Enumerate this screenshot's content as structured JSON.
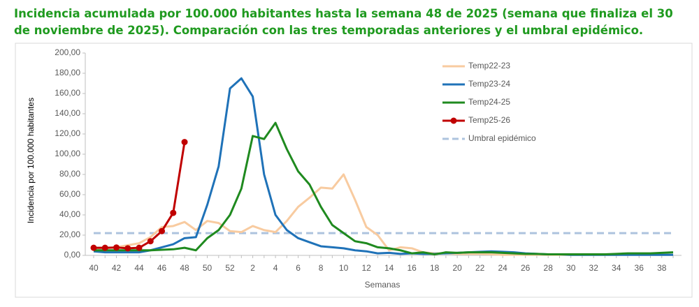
{
  "chart_data": {
    "type": "line",
    "title": "Incidencia acumulada por 100.000 habitantes hasta la semana 48 de 2025 (semana que finaliza el 30 de noviembre de 2025). Comparación con las tres temporadas anteriores y el umbral epidémico.",
    "x_label": "Semanas",
    "y_label": "Incidencia por 100.000 habitantes",
    "categories": [
      "40",
      null,
      "42",
      null,
      "44",
      null,
      "46",
      null,
      "48",
      null,
      "50",
      null,
      "52",
      null,
      "2",
      null,
      "4",
      null,
      "6",
      null,
      "8",
      null,
      "10",
      null,
      "12",
      null,
      "14",
      null,
      "16",
      null,
      "18",
      null,
      "20",
      null,
      "22",
      null,
      "24",
      null,
      "26",
      null,
      "28",
      null,
      "30",
      null,
      "32",
      null,
      "34",
      null,
      "36",
      null,
      "38",
      null
    ],
    "ylim": [
      0,
      200
    ],
    "yticks": [
      {
        "value": 0,
        "label": "0,00"
      },
      {
        "value": 20,
        "label": "20,00"
      },
      {
        "value": 40,
        "label": "40,00"
      },
      {
        "value": 60,
        "label": "60,00"
      },
      {
        "value": 80,
        "label": "80,00"
      },
      {
        "value": 100,
        "label": "100,00"
      },
      {
        "value": 120,
        "label": "120,00"
      },
      {
        "value": 140,
        "label": "140,00"
      },
      {
        "value": 160,
        "label": "160,00"
      },
      {
        "value": 180,
        "label": "180,00"
      },
      {
        "value": 200,
        "label": "200,00"
      }
    ],
    "series": [
      {
        "name": "Temp22-23",
        "color": "#f8cba0",
        "values": [
          7,
          7,
          8,
          10,
          12,
          18,
          28,
          29,
          33,
          25,
          34,
          32,
          24,
          23,
          29,
          25,
          23,
          34,
          48,
          57,
          67,
          66,
          80,
          55,
          28,
          20,
          5,
          8,
          7,
          3,
          2,
          2,
          1.5,
          1.5,
          1.5,
          1,
          0.5,
          0.5,
          0.5,
          0.5,
          0.5,
          0.5,
          0.5,
          0.5,
          0.5,
          0.5,
          0.5,
          0.5,
          0.5,
          0.5,
          0.5,
          0.5
        ]
      },
      {
        "name": "Temp23-24",
        "color": "#1f72b8",
        "values": [
          4,
          3,
          3,
          3,
          3,
          5,
          8,
          11,
          17,
          18,
          50,
          88,
          165,
          175,
          157,
          80,
          40,
          25,
          17,
          13,
          9,
          8,
          7,
          5,
          4,
          2,
          2.5,
          1.5,
          2,
          1.5,
          1.5,
          2,
          2.5,
          3,
          3.5,
          4,
          3.5,
          3,
          2,
          1.5,
          1,
          1,
          0.5,
          0.5,
          0.5,
          0.5,
          0.5,
          0.5,
          0.5,
          0.5,
          0.5,
          0.5
        ]
      },
      {
        "name": "Temp24-25",
        "color": "#1f8a1f",
        "values": [
          5,
          5,
          5,
          5,
          5,
          5,
          5.5,
          6,
          7.5,
          5,
          17,
          25,
          40,
          66,
          118,
          115,
          131,
          105,
          83,
          70,
          48,
          30,
          22,
          14,
          12,
          8,
          7,
          5,
          2,
          3,
          1,
          3,
          2.5,
          3,
          3,
          3,
          2.5,
          2,
          1.5,
          1.5,
          1,
          1,
          1,
          1,
          1,
          1,
          1.5,
          2,
          2,
          2,
          2.5,
          3
        ]
      },
      {
        "name": "Temp25-26",
        "color": "#c00000",
        "markers": true,
        "values": [
          7.5,
          7.5,
          7.8,
          7,
          7.5,
          14,
          24,
          42,
          112,
          null,
          null,
          null,
          null,
          null,
          null,
          null,
          null,
          null,
          null,
          null,
          null,
          null,
          null,
          null,
          null,
          null,
          null,
          null,
          null,
          null,
          null,
          null,
          null,
          null,
          null,
          null,
          null,
          null,
          null,
          null,
          null,
          null,
          null,
          null,
          null,
          null,
          null,
          null,
          null,
          null,
          null,
          null
        ]
      }
    ],
    "threshold": {
      "name": "Umbral epidémico",
      "value": 22,
      "color": "#adc3de"
    }
  }
}
